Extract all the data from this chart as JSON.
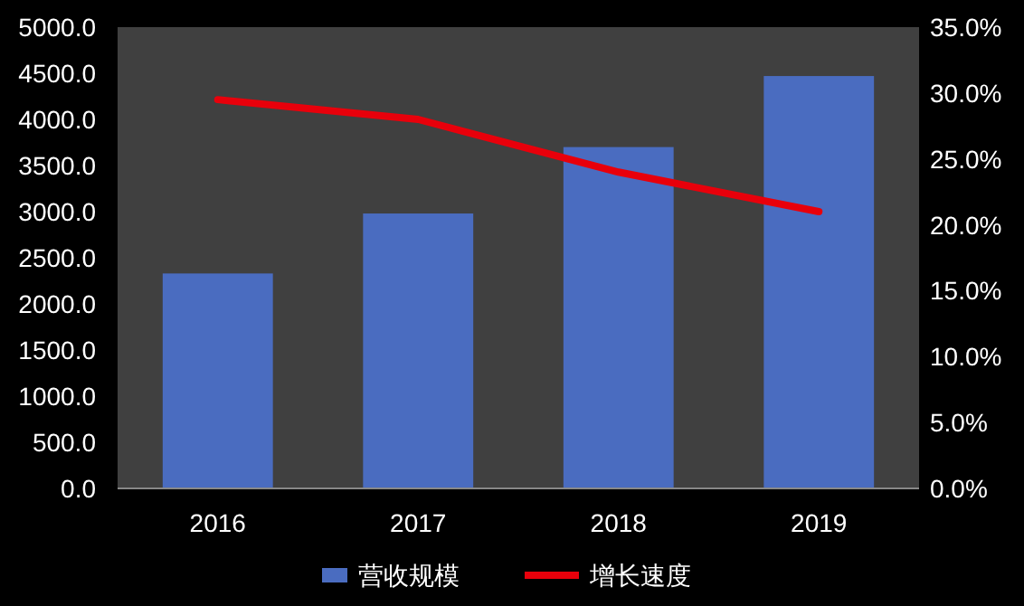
{
  "chart_data": {
    "type": "bar",
    "categories": [
      "2016",
      "2017",
      "2018",
      "2019"
    ],
    "series": [
      {
        "name": "营收规模",
        "color": "#4a6cc0",
        "values": [
          2330,
          2980,
          3700,
          4470
        ]
      },
      {
        "name": "增长速度",
        "type": "line",
        "axis": "y2",
        "color": "#e8000b",
        "values": [
          29.5,
          28.0,
          24.0,
          21.0
        ]
      }
    ],
    "ylim": [
      0,
      5000
    ],
    "yticks": [
      {
        "value": 0,
        "label": "0.0"
      },
      {
        "value": 500,
        "label": "500.0"
      },
      {
        "value": 1000,
        "label": "1000.0"
      },
      {
        "value": 1500,
        "label": "1500.0"
      },
      {
        "value": 2000,
        "label": "2000.0"
      },
      {
        "value": 2500,
        "label": "2500.0"
      },
      {
        "value": 3000,
        "label": "3000.0"
      },
      {
        "value": 3500,
        "label": "3500.0"
      },
      {
        "value": 4000,
        "label": "4000.0"
      },
      {
        "value": 4500,
        "label": "4500.0"
      },
      {
        "value": 5000,
        "label": "5000.0"
      }
    ],
    "y2lim": [
      0,
      35
    ],
    "y2ticks": [
      {
        "value": 0,
        "label": "0.0%"
      },
      {
        "value": 5,
        "label": "5.0%"
      },
      {
        "value": 10,
        "label": "10.0%"
      },
      {
        "value": 15,
        "label": "15.0%"
      },
      {
        "value": 20,
        "label": "20.0%"
      },
      {
        "value": 25,
        "label": "25.0%"
      },
      {
        "value": 30,
        "label": "30.0%"
      },
      {
        "value": 35,
        "label": "35.0%"
      }
    ],
    "grid": false,
    "legend": "bottom",
    "marker": "none"
  }
}
